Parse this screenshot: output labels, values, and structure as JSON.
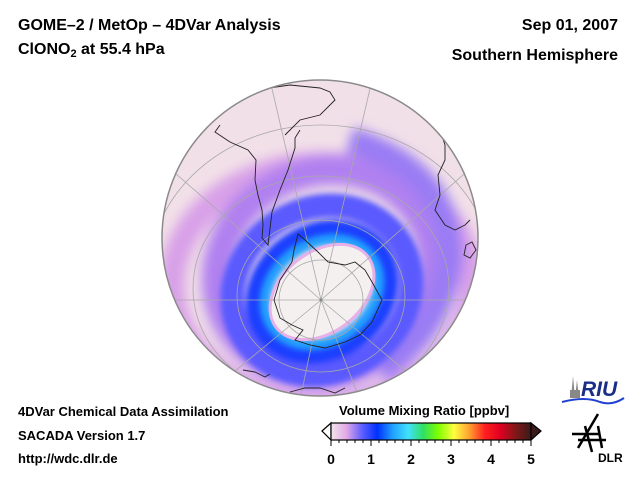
{
  "header": {
    "title_line1": "GOME–2 / MetOp – 4DVar Analysis",
    "species_main": "ClONO",
    "species_sub": "2",
    "species_rest": " at 55.4 hPa",
    "date": "Sep 01, 2007",
    "region": "Southern Hemisphere"
  },
  "footer": {
    "line1": "4DVar Chemical Data Assimilation",
    "line2": "SACADA Version 1.7",
    "line3": "http://wdc.dlr.de"
  },
  "colorbar": {
    "title": "Volume Mixing Ratio [ppbv]",
    "min": 0,
    "max": 5,
    "ticks": [
      "0",
      "1",
      "2",
      "3",
      "4",
      "5"
    ],
    "extend": "both",
    "colors": [
      "#f2e6ec",
      "#e2a8e6",
      "#6060ff",
      "#0030ff",
      "#20a0ff",
      "#40e0ff",
      "#30e060",
      "#80ff00",
      "#ffff40",
      "#ffa030",
      "#ff2020",
      "#e00020",
      "#801818",
      "#3a1a1a"
    ]
  },
  "map": {
    "projection": "orthographic, south-polar",
    "field": "ClONO2 volume mixing ratio",
    "ocean_fill": "#f2e0e8",
    "vortex_core_color": "#f4f0f0",
    "high_band_color": "#1a40ff",
    "collar_color": "#20a0ff",
    "outer_band_color": "#b880e8"
  },
  "logos": {
    "riu": "RIU",
    "dlr": "DLR"
  },
  "icons": {
    "riu_logo": "cathedral-wave-logo",
    "dlr_logo": "dlr-cross-logo"
  }
}
